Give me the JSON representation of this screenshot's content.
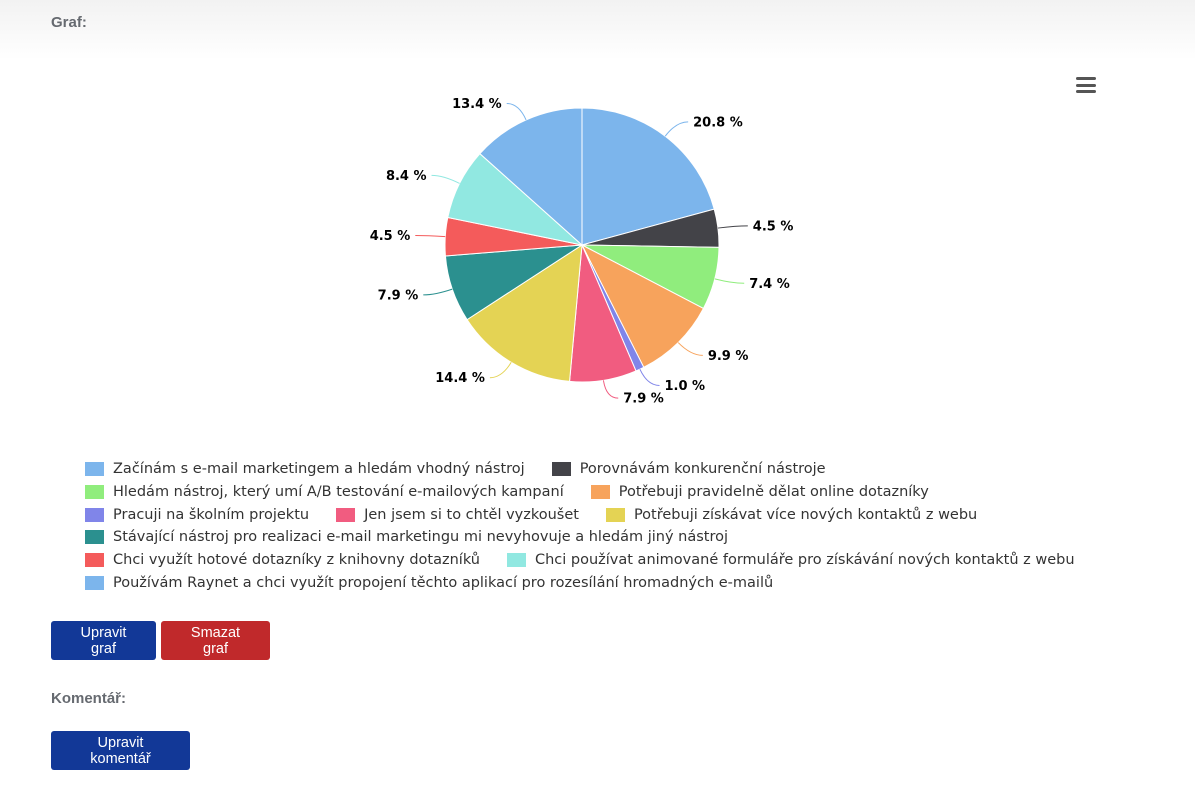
{
  "labels": {
    "graph": "Graf:",
    "comment": "Komentář:"
  },
  "buttons": {
    "edit_chart": "Upravit graf",
    "delete_chart": "Smazat graf",
    "edit_comment": "Upravit komentář"
  },
  "menu_icon": "hamburger-menu-icon",
  "chart_data": {
    "type": "pie",
    "title": "",
    "legend_position": "bottom",
    "slices": [
      {
        "label": "Začínám s e-mail marketingem a hledám vhodný nástroj",
        "value": 20.8,
        "display": "20.8 %",
        "color": "#7cb5ec"
      },
      {
        "label": "Porovnávám konkurenční nástroje",
        "value": 4.5,
        "display": "4.5 %",
        "color": "#434348"
      },
      {
        "label": "Hledám nástroj, který umí A/B testování e-mailových kampaní",
        "value": 7.4,
        "display": "7.4 %",
        "color": "#90ed7d"
      },
      {
        "label": "Potřebuji pravidelně dělat online dotazníky",
        "value": 9.9,
        "display": "9.9 %",
        "color": "#f7a35c"
      },
      {
        "label": "Pracuji na školním projektu",
        "value": 1.0,
        "display": "1.0 %",
        "color": "#8085e9"
      },
      {
        "label": "Jen jsem si to chtěl vyzkoušet",
        "value": 7.9,
        "display": "7.9 %",
        "color": "#f15c80"
      },
      {
        "label": "Potřebuji získávat více nových kontaktů z webu",
        "value": 14.4,
        "display": "14.4 %",
        "color": "#e4d354"
      },
      {
        "label": "Stávající nástroj pro realizaci e-mail marketingu mi nevyhovuje a hledám jiný nástroj",
        "value": 7.9,
        "display": "7.9 %",
        "color": "#2b908f"
      },
      {
        "label": "Chci využít hotové dotazníky z knihovny dotazníků",
        "value": 4.5,
        "display": "4.5 %",
        "color": "#f45b5b"
      },
      {
        "label": "Chci používat animované formuláře pro získávání nových kontaktů z webu",
        "value": 8.4,
        "display": "8.4 %",
        "color": "#91e8e1"
      },
      {
        "label": "Používám Raynet a chci využít propojení těchto aplikací pro rozesílání hromadných e-mailů",
        "value": 13.4,
        "display": "13.4 %",
        "color": "#7cb5ec"
      }
    ]
  }
}
